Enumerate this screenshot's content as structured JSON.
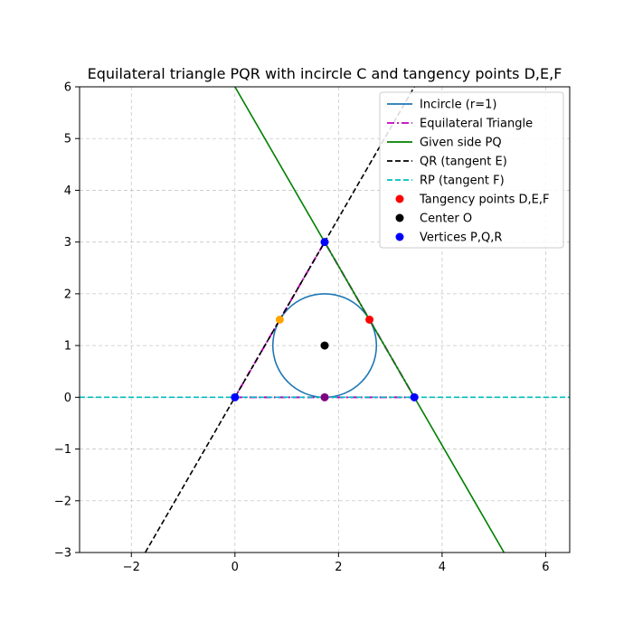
{
  "chart_data": {
    "type": "line",
    "title": "Equilateral triangle PQR with incircle C and tangency points D,E,F",
    "xlabel": "",
    "ylabel": "",
    "xlim": [
      -3,
      6.464
    ],
    "ylim": [
      -3,
      6
    ],
    "xticks": [
      -2,
      0,
      2,
      4,
      6
    ],
    "yticks": [
      -3,
      -2,
      -1,
      0,
      1,
      2,
      3,
      4,
      5,
      6
    ],
    "xtick_labels": [
      "−2",
      "0",
      "2",
      "4",
      "6"
    ],
    "ytick_labels": [
      "−3",
      "−2",
      "−1",
      "0",
      "1",
      "2",
      "3",
      "4",
      "5",
      "6"
    ],
    "grid": true,
    "legend_position": "upper-right",
    "incircle": {
      "name": "Incircle (r=1)",
      "center": [
        1.732,
        1
      ],
      "r": 1,
      "color": "#1f77b4"
    },
    "triangle": {
      "name": "Equilateral Triangle",
      "color": "#bf00bf",
      "points": [
        [
          0,
          0
        ],
        [
          3.464,
          0
        ],
        [
          1.732,
          3
        ],
        [
          0,
          0
        ]
      ]
    },
    "lines": [
      {
        "name": "Given side PQ",
        "color": "#008000",
        "style": "solid",
        "points": [
          [
            0,
            6
          ],
          [
            5.196,
            -3
          ]
        ]
      },
      {
        "name": "QR (tangent E)",
        "color": "#000000",
        "style": "dashed",
        "points": [
          [
            -1.732,
            -3
          ],
          [
            3.464,
            6
          ]
        ]
      },
      {
        "name": "RP (tangent F)",
        "color": "#00bfbf",
        "style": "dashed",
        "points": [
          [
            -3,
            0
          ],
          [
            6.464,
            0
          ]
        ]
      }
    ],
    "scatter": [
      {
        "name": "Tangency points D,E,F",
        "color": "#ff0000",
        "points": [
          [
            2.598,
            1.5
          ]
        ]
      },
      {
        "name": "Center O",
        "color": "#000000",
        "points": [
          [
            1.732,
            1
          ]
        ]
      },
      {
        "name": "Vertices P,Q,R",
        "color": "#0000ff",
        "points": [
          [
            0,
            0
          ],
          [
            3.464,
            0
          ],
          [
            1.732,
            3
          ]
        ]
      }
    ],
    "extra_points": [
      {
        "color": "#ffa500",
        "points": [
          [
            0.866,
            1.5
          ]
        ]
      },
      {
        "color": "#800080",
        "points": [
          [
            1.732,
            0
          ]
        ]
      }
    ],
    "legend": [
      {
        "label": "Incircle (r=1)",
        "kind": "line",
        "color": "#1f77b4",
        "style": "solid"
      },
      {
        "label": "Equilateral Triangle",
        "kind": "line",
        "color": "#bf00bf",
        "style": "dashdot"
      },
      {
        "label": "Given side PQ",
        "kind": "line",
        "color": "#008000",
        "style": "solid"
      },
      {
        "label": "QR (tangent E)",
        "kind": "line",
        "color": "#000000",
        "style": "dashed"
      },
      {
        "label": "RP (tangent F)",
        "kind": "line",
        "color": "#00bfbf",
        "style": "dashed"
      },
      {
        "label": "Tangency points D,E,F",
        "kind": "marker",
        "color": "#ff0000"
      },
      {
        "label": "Center O",
        "kind": "marker",
        "color": "#000000"
      },
      {
        "label": "Vertices P,Q,R",
        "kind": "marker",
        "color": "#0000ff"
      }
    ]
  }
}
